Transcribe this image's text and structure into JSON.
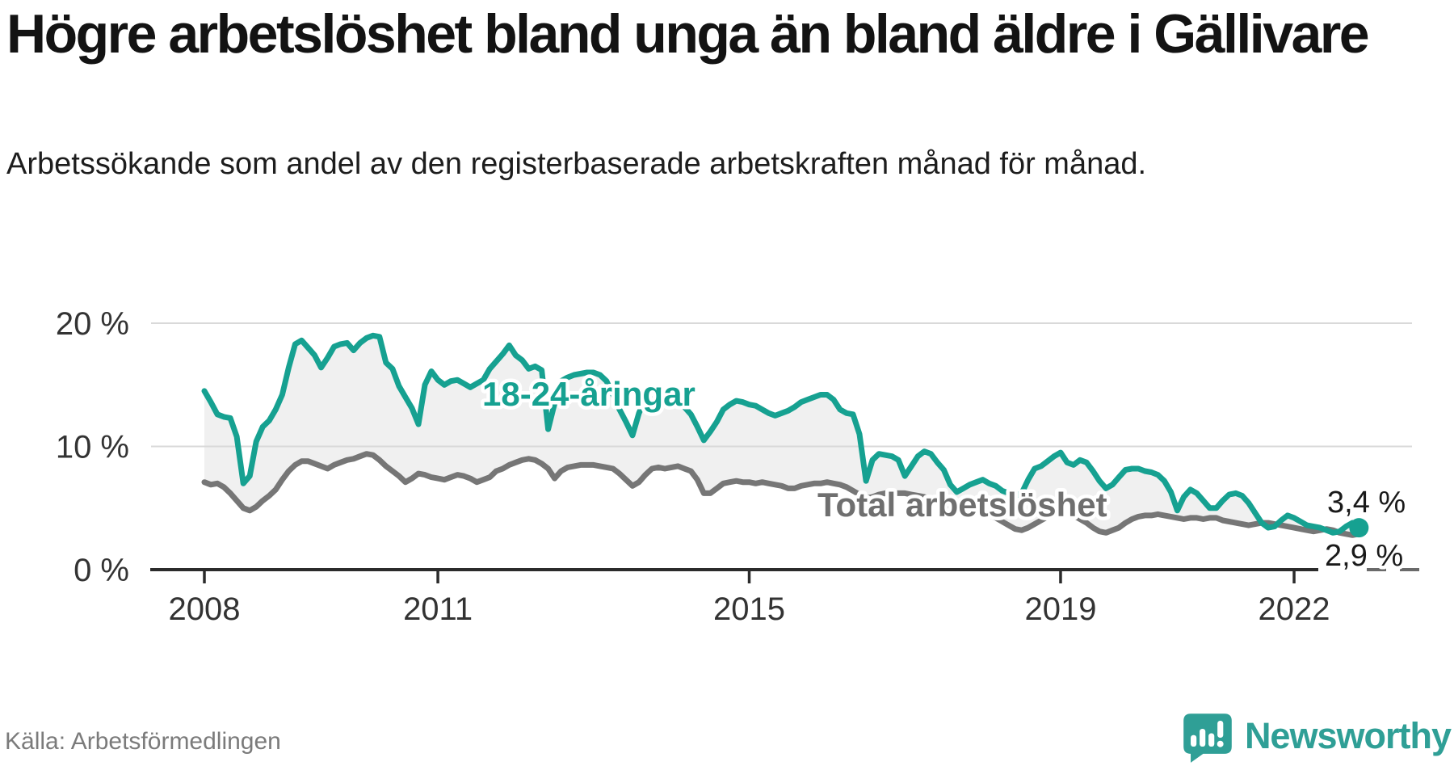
{
  "header": {
    "title": "Högre arbetslöshet bland unga än bland äldre i Gällivare",
    "subtitle": "Arbetssökande som andel av den registerbaserade arbetskraften månad för månad."
  },
  "footer": {
    "source": "Källa: Arbetsförmedlingen",
    "brand_name": "Newsworthy"
  },
  "colors": {
    "teal": "#16A191",
    "gray": "#767676",
    "gray_label": "#6f6f6f",
    "axis": "#2b2b2b",
    "grid": "#d9d9d9",
    "band_fill": "#f0f0f0",
    "tick_text": "#333333",
    "annotation_text": "#1a1a1a",
    "brand_teal": "#2f9f96"
  },
  "chart_data": {
    "type": "line",
    "title": "Högre arbetslöshet bland unga än bland äldre i Gällivare",
    "subtitle": "Arbetssökande som andel av den registerbaserade arbetskraften månad för månad.",
    "unit": "%",
    "frequency": "monthly",
    "x_start": "2008-01",
    "x_end": "2022-11",
    "ylim": [
      0,
      20
    ],
    "grid": "horizontal",
    "legend_position": "inline-labels",
    "y_ticks": [
      {
        "value": 20,
        "label": "20 %"
      },
      {
        "value": 10,
        "label": "10 %"
      },
      {
        "value": 0,
        "label": "0 %"
      }
    ],
    "x_ticks": [
      {
        "year": 2008,
        "label": "2008"
      },
      {
        "year": 2011,
        "label": "2011"
      },
      {
        "year": 2015,
        "label": "2015"
      },
      {
        "year": 2019,
        "label": "2019"
      },
      {
        "year": 2022,
        "label": "2022"
      }
    ],
    "series": [
      {
        "name": "18-24-åringar",
        "color": "#16A191",
        "end_label": "3,4 %",
        "end_value": 3.4,
        "values": [
          14.5,
          13.6,
          12.6,
          12.4,
          12.3,
          10.8,
          7.0,
          7.6,
          10.4,
          11.6,
          12.1,
          13.0,
          14.2,
          16.4,
          18.3,
          18.6,
          18.0,
          17.4,
          16.4,
          17.2,
          18.1,
          18.3,
          18.4,
          17.8,
          18.4,
          18.8,
          19.0,
          18.9,
          16.8,
          16.3,
          14.9,
          14.0,
          13.1,
          11.8,
          15.0,
          16.1,
          15.4,
          15.0,
          15.3,
          15.4,
          15.1,
          14.8,
          15.1,
          15.4,
          16.3,
          16.9,
          17.5,
          18.2,
          17.4,
          17.0,
          16.3,
          16.5,
          16.2,
          11.4,
          13.5,
          15.3,
          15.6,
          15.8,
          15.9,
          16.0,
          16.0,
          15.8,
          15.3,
          14.2,
          13.0,
          12.0,
          10.9,
          12.7,
          13.9,
          13.8,
          14.0,
          13.9,
          13.8,
          13.7,
          13.2,
          12.6,
          11.6,
          10.5,
          11.2,
          12.0,
          13.0,
          13.4,
          13.7,
          13.6,
          13.4,
          13.3,
          13.0,
          12.7,
          12.5,
          12.7,
          12.9,
          13.2,
          13.6,
          13.8,
          14.0,
          14.2,
          14.2,
          13.8,
          13.0,
          12.7,
          12.6,
          11.0,
          7.2,
          8.9,
          9.4,
          9.3,
          9.2,
          8.9,
          7.6,
          8.4,
          9.2,
          9.6,
          9.4,
          8.7,
          8.1,
          6.9,
          6.3,
          6.6,
          6.9,
          7.1,
          7.3,
          7.0,
          6.8,
          6.4,
          6.2,
          6.0,
          6.2,
          7.3,
          8.2,
          8.4,
          8.8,
          9.2,
          9.5,
          8.7,
          8.5,
          8.9,
          8.7,
          8.0,
          7.2,
          6.6,
          6.9,
          7.5,
          8.1,
          8.2,
          8.2,
          8.0,
          7.9,
          7.7,
          7.2,
          6.3,
          4.8,
          5.9,
          6.5,
          6.2,
          5.6,
          5.0,
          5.0,
          5.6,
          6.1,
          6.2,
          6.0,
          5.4,
          4.6,
          3.8,
          3.4,
          3.5,
          4.0,
          4.4,
          4.2,
          3.9,
          3.6,
          3.5,
          3.4,
          3.2,
          3.0,
          3.1,
          3.5,
          3.8,
          3.4
        ]
      },
      {
        "name": "Total arbetslöshet",
        "color": "#767676",
        "end_label": "2,9 %",
        "end_value": 2.9,
        "values": [
          7.1,
          6.9,
          7.0,
          6.7,
          6.2,
          5.6,
          5.0,
          4.8,
          5.1,
          5.6,
          6.0,
          6.5,
          7.3,
          8.0,
          8.5,
          8.8,
          8.8,
          8.6,
          8.4,
          8.2,
          8.5,
          8.7,
          8.9,
          9.0,
          9.2,
          9.4,
          9.3,
          8.9,
          8.4,
          8.0,
          7.6,
          7.1,
          7.4,
          7.8,
          7.7,
          7.5,
          7.4,
          7.3,
          7.5,
          7.7,
          7.6,
          7.4,
          7.1,
          7.3,
          7.5,
          8.0,
          8.2,
          8.5,
          8.7,
          8.9,
          9.0,
          8.9,
          8.6,
          8.2,
          7.4,
          8.0,
          8.3,
          8.4,
          8.5,
          8.5,
          8.5,
          8.4,
          8.3,
          8.2,
          7.8,
          7.3,
          6.8,
          7.1,
          7.7,
          8.2,
          8.3,
          8.2,
          8.3,
          8.4,
          8.2,
          8.0,
          7.3,
          6.2,
          6.2,
          6.6,
          7.0,
          7.1,
          7.2,
          7.1,
          7.1,
          7.0,
          7.1,
          7.0,
          6.9,
          6.8,
          6.6,
          6.6,
          6.8,
          6.9,
          7.0,
          7.0,
          7.1,
          7.0,
          6.9,
          6.7,
          6.4,
          6.1,
          5.8,
          5.9,
          6.1,
          6.2,
          6.2,
          6.2,
          6.2,
          6.1,
          6.0,
          5.9,
          5.7,
          5.4,
          5.1,
          4.9,
          4.8,
          4.8,
          4.7,
          4.6,
          4.5,
          4.4,
          4.2,
          3.9,
          3.6,
          3.3,
          3.2,
          3.4,
          3.7,
          4.0,
          4.3,
          4.5,
          4.7,
          4.6,
          4.4,
          4.1,
          3.8,
          3.4,
          3.1,
          3.0,
          3.2,
          3.4,
          3.8,
          4.1,
          4.3,
          4.4,
          4.4,
          4.5,
          4.4,
          4.3,
          4.2,
          4.1,
          4.2,
          4.2,
          4.1,
          4.2,
          4.2,
          4.0,
          3.9,
          3.8,
          3.7,
          3.6,
          3.7,
          3.8,
          3.8,
          3.7,
          3.6,
          3.5,
          3.4,
          3.3,
          3.2,
          3.1,
          3.2,
          3.3,
          3.2,
          3.0,
          2.9,
          2.8,
          2.9
        ]
      }
    ]
  }
}
